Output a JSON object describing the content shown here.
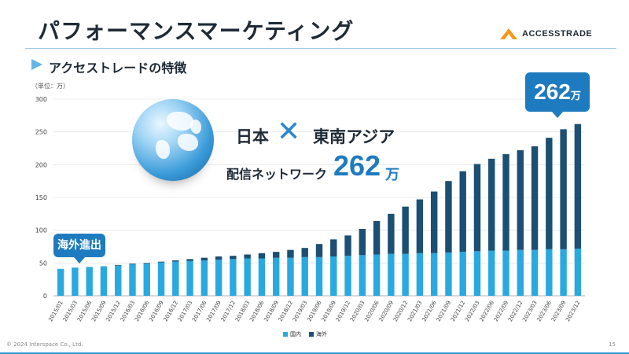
{
  "header": {
    "title": "パフォーマンスマーケティング",
    "subtitle": "アクセストレードの特徴",
    "logo_text": "ACCESSTRADE"
  },
  "callouts": {
    "start": "海外進出",
    "end_value": "262",
    "end_unit": "万"
  },
  "highlight": {
    "japan": "日本",
    "cross": "✕",
    "sea": "東南アジア",
    "network_label": "配信ネットワーク",
    "network_value": "262",
    "network_unit": "万"
  },
  "footer": {
    "copyright": "© 2024 Interspace Co., Ltd.",
    "page": "15"
  },
  "colors": {
    "domestic": "#2aa9e0",
    "overseas": "#1b4f73",
    "accent": "#1f7bbf"
  },
  "chart_data": {
    "type": "bar",
    "stacked": true,
    "unit_label": "（単位：万）",
    "ylim": [
      0,
      300
    ],
    "yticks": [
      0,
      50,
      100,
      150,
      200,
      250,
      300
    ],
    "categories": [
      "2015/01",
      "2015/03",
      "2015/06",
      "2015/09",
      "2015/12",
      "2016/03",
      "2016/06",
      "2016/09",
      "2016/12",
      "2017/03",
      "2017/06",
      "2017/09",
      "2017/12",
      "2018/03",
      "2018/06",
      "2018/09",
      "2018/12",
      "2019/03",
      "2019/06",
      "2019/09",
      "2019/12",
      "2020/03",
      "2020/06",
      "2020/09",
      "2020/12",
      "2021/03",
      "2021/06",
      "2021/09",
      "2021/12",
      "2022/03",
      "2022/06",
      "2022/09",
      "2022/12",
      "2023/03",
      "2023/06",
      "2023/09",
      "2023/12"
    ],
    "series": [
      {
        "name": "国内",
        "values": [
          41,
          43,
          44,
          45,
          46,
          48,
          49,
          51,
          52,
          53,
          54,
          55,
          56,
          57,
          57,
          58,
          58,
          59,
          59,
          60,
          61,
          62,
          63,
          64,
          64,
          65,
          65,
          66,
          67,
          68,
          69,
          69,
          70,
          70,
          71,
          71,
          72
        ]
      },
      {
        "name": "海外",
        "values": [
          0,
          0,
          0,
          0,
          1,
          1,
          1,
          1,
          2,
          3,
          4,
          5,
          5,
          6,
          8,
          9,
          12,
          14,
          20,
          26,
          31,
          40,
          51,
          61,
          72,
          82,
          94,
          109,
          123,
          133,
          140,
          147,
          152,
          158,
          170,
          183,
          190
        ]
      }
    ],
    "legend": "bottom"
  }
}
